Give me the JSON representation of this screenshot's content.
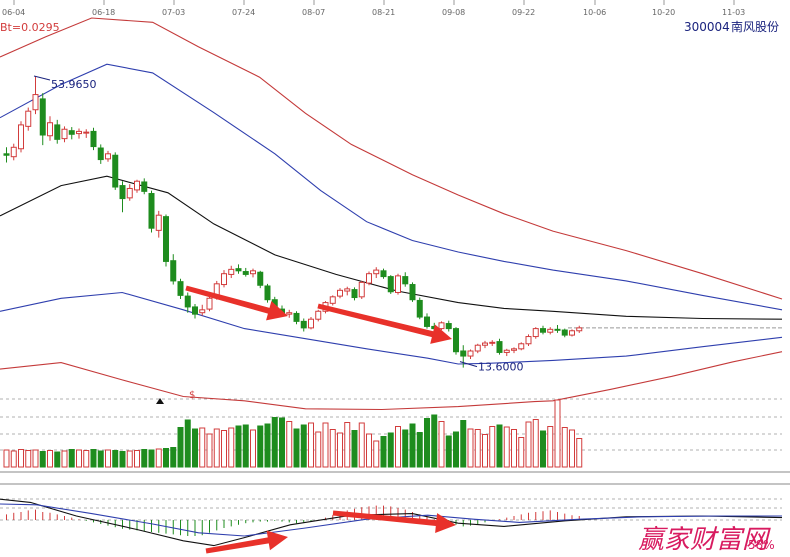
{
  "header": {
    "ticker": "300004",
    "name": "南风股份",
    "bt_label": "Bt=0.0295"
  },
  "colors": {
    "up": "#d23c3c",
    "down": "#1e8c1e",
    "boll_outer": "#c43a3a",
    "boll_inner": "#2f3fae",
    "boll_mid": "#111111",
    "axis_text": "#666666",
    "annotation": "#1a237e",
    "arrow": "#e8312a",
    "watermark": "#d81b60",
    "grid": "#b0b0b0"
  },
  "chart_data": {
    "type": "candlestick",
    "x_ticks": [
      "06-04",
      "06-18",
      "07-03",
      "07-24",
      "08-07",
      "08-21",
      "09-08",
      "09-22",
      "10-06",
      "10-20",
      "11-03"
    ],
    "price_range": [
      10.5,
      62
    ],
    "candles": [
      [
        43.2,
        44.1,
        42.0,
        43.0
      ],
      [
        42.8,
        44.6,
        42.3,
        44.1
      ],
      [
        43.9,
        47.7,
        43.4,
        47.2
      ],
      [
        47.0,
        49.6,
        46.4,
        49.1
      ],
      [
        49.3,
        53.96,
        48.7,
        51.4
      ],
      [
        50.8,
        51.6,
        44.4,
        45.8
      ],
      [
        45.7,
        48.4,
        45.0,
        47.5
      ],
      [
        47.2,
        47.9,
        44.6,
        45.2
      ],
      [
        45.3,
        47.0,
        44.8,
        46.6
      ],
      [
        46.4,
        46.9,
        45.2,
        45.9
      ],
      [
        46.0,
        46.7,
        45.3,
        46.3
      ],
      [
        46.1,
        46.6,
        45.4,
        46.2
      ],
      [
        46.3,
        46.8,
        43.7,
        44.2
      ],
      [
        44.0,
        44.5,
        41.8,
        42.4
      ],
      [
        42.5,
        43.6,
        42.1,
        43.2
      ],
      [
        43.0,
        43.4,
        38.2,
        38.6
      ],
      [
        38.8,
        39.4,
        35.1,
        37.0
      ],
      [
        37.1,
        39.0,
        36.7,
        38.4
      ],
      [
        38.2,
        39.6,
        37.8,
        39.4
      ],
      [
        39.3,
        39.8,
        37.6,
        38.0
      ],
      [
        37.7,
        38.1,
        32.3,
        32.9
      ],
      [
        32.6,
        35.3,
        31.6,
        34.7
      ],
      [
        34.5,
        34.8,
        27.6,
        28.3
      ],
      [
        28.4,
        29.3,
        25.1,
        25.6
      ],
      [
        25.5,
        25.9,
        23.1,
        23.6
      ],
      [
        23.5,
        24.0,
        21.2,
        22.0
      ],
      [
        22.0,
        22.4,
        20.4,
        21.0
      ],
      [
        21.2,
        22.3,
        20.8,
        21.6
      ],
      [
        21.7,
        23.6,
        21.4,
        23.2
      ],
      [
        23.3,
        25.6,
        23.0,
        25.2
      ],
      [
        25.1,
        27.1,
        24.7,
        26.6
      ],
      [
        26.5,
        27.7,
        26.0,
        27.2
      ],
      [
        27.3,
        27.9,
        26.6,
        27.0
      ],
      [
        26.9,
        27.4,
        26.2,
        26.5
      ],
      [
        26.6,
        27.3,
        26.1,
        27.0
      ],
      [
        26.8,
        27.0,
        24.6,
        25.0
      ],
      [
        24.9,
        25.2,
        22.6,
        23.0
      ],
      [
        23.0,
        23.4,
        21.4,
        21.8
      ],
      [
        21.7,
        22.2,
        20.6,
        21.0
      ],
      [
        21.0,
        21.6,
        20.5,
        21.2
      ],
      [
        21.1,
        21.4,
        19.6,
        20.0
      ],
      [
        20.0,
        20.4,
        18.6,
        19.1
      ],
      [
        19.1,
        20.6,
        18.9,
        20.3
      ],
      [
        20.3,
        21.6,
        20.0,
        21.4
      ],
      [
        21.4,
        22.8,
        21.1,
        22.6
      ],
      [
        22.5,
        23.6,
        22.2,
        23.4
      ],
      [
        23.5,
        24.6,
        23.2,
        24.3
      ],
      [
        24.2,
        24.8,
        23.6,
        24.5
      ],
      [
        24.4,
        24.7,
        22.9,
        23.3
      ],
      [
        23.4,
        25.6,
        23.1,
        25.4
      ],
      [
        25.3,
        26.9,
        25.0,
        26.6
      ],
      [
        26.6,
        27.5,
        26.0,
        27.1
      ],
      [
        27.0,
        27.3,
        25.9,
        26.2
      ],
      [
        26.2,
        26.4,
        23.8,
        24.1
      ],
      [
        24.0,
        26.6,
        23.7,
        26.3
      ],
      [
        26.2,
        26.8,
        24.8,
        25.2
      ],
      [
        25.1,
        25.4,
        22.7,
        23.0
      ],
      [
        22.9,
        23.3,
        20.3,
        20.6
      ],
      [
        20.6,
        21.1,
        19.0,
        19.3
      ],
      [
        19.3,
        19.8,
        18.7,
        19.0
      ],
      [
        19.0,
        20.0,
        18.8,
        19.8
      ],
      [
        19.7,
        20.1,
        18.6,
        19.0
      ],
      [
        19.0,
        19.2,
        15.4,
        15.8
      ],
      [
        15.9,
        16.7,
        13.6,
        15.2
      ],
      [
        15.2,
        16.1,
        14.8,
        15.9
      ],
      [
        15.9,
        16.9,
        15.6,
        16.7
      ],
      [
        16.7,
        17.3,
        16.3,
        17.0
      ],
      [
        17.0,
        17.4,
        16.6,
        17.1
      ],
      [
        17.2,
        17.6,
        15.4,
        15.7
      ],
      [
        15.7,
        16.2,
        15.2,
        16.0
      ],
      [
        16.0,
        16.4,
        15.6,
        16.2
      ],
      [
        16.2,
        17.1,
        16.0,
        16.9
      ],
      [
        16.9,
        18.2,
        16.6,
        17.9
      ],
      [
        17.9,
        19.2,
        17.6,
        19.0
      ],
      [
        19.0,
        19.4,
        18.2,
        18.5
      ],
      [
        18.5,
        19.2,
        18.2,
        18.9
      ],
      [
        18.9,
        19.5,
        18.4,
        18.8
      ],
      [
        18.8,
        19.0,
        17.8,
        18.1
      ],
      [
        18.1,
        18.9,
        17.9,
        18.7
      ],
      [
        18.7,
        19.4,
        18.4,
        19.1
      ]
    ],
    "bands": {
      "mid": [
        [
          0,
          34.6
        ],
        [
          20,
          38.8
        ],
        [
          35,
          40.1
        ],
        [
          55,
          37.8
        ],
        [
          70,
          33.5
        ],
        [
          90,
          29.2
        ],
        [
          110,
          26.5
        ],
        [
          130,
          24.2
        ],
        [
          150,
          22.6
        ],
        [
          165,
          21.8
        ],
        [
          181,
          21.4
        ],
        [
          205,
          20.7
        ],
        [
          230,
          20.4
        ],
        [
          256,
          20.3
        ]
      ],
      "inner_upper": [
        [
          0,
          48.2
        ],
        [
          20,
          52.8
        ],
        [
          35,
          55.6
        ],
        [
          50,
          54.4
        ],
        [
          70,
          48.9
        ],
        [
          90,
          43.2
        ],
        [
          105,
          38.1
        ],
        [
          120,
          33.8
        ],
        [
          135,
          31.2
        ],
        [
          150,
          29.6
        ],
        [
          165,
          28.3
        ],
        [
          181,
          27.1
        ],
        [
          205,
          25.6
        ],
        [
          230,
          23.6
        ],
        [
          256,
          21.6
        ]
      ],
      "inner_lower": [
        [
          0,
          21.4
        ],
        [
          20,
          23.2
        ],
        [
          40,
          24.0
        ],
        [
          60,
          21.6
        ],
        [
          80,
          19.0
        ],
        [
          100,
          17.6
        ],
        [
          120,
          16.2
        ],
        [
          140,
          14.9
        ],
        [
          150,
          14.1
        ],
        [
          160,
          14.2
        ],
        [
          181,
          14.6
        ],
        [
          205,
          15.2
        ],
        [
          230,
          16.5
        ],
        [
          256,
          17.8
        ]
      ],
      "outer_upper": [
        [
          0,
          56.6
        ],
        [
          15,
          59.4
        ],
        [
          30,
          62.0
        ],
        [
          50,
          61.4
        ],
        [
          65,
          58.0
        ],
        [
          85,
          53.8
        ],
        [
          100,
          48.8
        ],
        [
          115,
          44.5
        ],
        [
          135,
          40.3
        ],
        [
          150,
          37.5
        ],
        [
          165,
          34.9
        ],
        [
          181,
          32.5
        ],
        [
          205,
          29.8
        ],
        [
          230,
          26.6
        ],
        [
          256,
          23.1
        ]
      ],
      "outer_lower": [
        [
          0,
          13.4
        ],
        [
          20,
          14.3
        ],
        [
          40,
          11.9
        ],
        [
          60,
          9.6
        ],
        [
          80,
          9.0
        ],
        [
          100,
          7.9
        ],
        [
          125,
          7.8
        ],
        [
          150,
          8.2
        ],
        [
          175,
          8.9
        ],
        [
          181,
          9.0
        ],
        [
          200,
          10.6
        ],
        [
          220,
          12.4
        ],
        [
          240,
          14.4
        ],
        [
          256,
          15.8
        ]
      ]
    },
    "volume": [
      3.4,
      3.2,
      3.5,
      3.3,
      3.4,
      3.1,
      3.3,
      3.0,
      3.2,
      3.5,
      3.4,
      3.3,
      3.5,
      3.2,
      3.4,
      3.3,
      3.1,
      3.2,
      3.3,
      3.5,
      3.4,
      3.6,
      3.7,
      3.9,
      7.9,
      9.4,
      7.6,
      7.8,
      6.6,
      7.6,
      7.3,
      7.8,
      8.2,
      8.4,
      7.4,
      8.2,
      8.6,
      9.9,
      9.8,
      9.1,
      7.6,
      8.4,
      8.8,
      7.0,
      8.8,
      7.5,
      6.8,
      8.9,
      7.3,
      8.8,
      6.6,
      5.2,
      6.1,
      6.8,
      8.1,
      7.4,
      8.6,
      6.9,
      9.7,
      10.4,
      9.1,
      6.2,
      7.0,
      9.3,
      7.6,
      7.5,
      6.5,
      8.1,
      8.4,
      8.0,
      7.5,
      5.9,
      9.0,
      9.5,
      7.2,
      8.1,
      13.4,
      7.9,
      7.4,
      5.7
    ],
    "volume_max": 14,
    "volume_up": [
      true,
      true,
      true,
      true,
      true,
      false,
      true,
      false,
      true,
      false,
      true,
      true,
      false,
      false,
      true,
      false,
      false,
      true,
      true,
      false,
      false,
      true,
      false,
      false,
      false,
      false,
      false,
      true,
      true,
      true,
      true,
      true,
      false,
      false,
      true,
      false,
      false,
      false,
      false,
      true,
      false,
      false,
      true,
      true,
      true,
      true,
      true,
      true,
      false,
      true,
      true,
      true,
      false,
      false,
      true,
      false,
      false,
      false,
      false,
      false,
      true,
      false,
      false,
      false,
      true,
      true,
      true,
      true,
      false,
      true,
      true,
      true,
      true,
      true,
      false,
      true,
      true,
      true,
      true,
      true
    ],
    "macd_hist": [
      0.7,
      0.9,
      1.0,
      1.2,
      1.3,
      1.0,
      0.9,
      0.7,
      0.5,
      0.3,
      0.1,
      -0.1,
      -0.3,
      -0.5,
      -0.7,
      -0.9,
      -1.1,
      -1.2,
      -1.3,
      -1.4,
      -1.5,
      -1.6,
      -1.7,
      -1.8,
      -1.9,
      -2.0,
      -2.0,
      -1.9,
      -1.6,
      -1.3,
      -1.0,
      -0.8,
      -0.6,
      -0.4,
      -0.3,
      -0.2,
      -0.2,
      -0.1,
      -0.2,
      -0.3,
      -0.4,
      -0.3,
      -0.2,
      0.0,
      0.3,
      0.6,
      0.9,
      1.2,
      1.4,
      1.6,
      1.7,
      1.8,
      1.8,
      1.7,
      1.5,
      1.3,
      1.0,
      0.7,
      0.4,
      0.1,
      -0.2,
      -0.4,
      -0.6,
      -0.8,
      -0.7,
      -0.5,
      -0.3,
      -0.1,
      0.1,
      0.3,
      0.5,
      0.7,
      0.9,
      1.0,
      1.1,
      1.2,
      1.0,
      0.8,
      0.6,
      0.5
    ],
    "macd_dif": [
      [
        0,
        2.6
      ],
      [
        10,
        2.2
      ],
      [
        25,
        0.5
      ],
      [
        45,
        -1.2
      ],
      [
        60,
        -2.6
      ],
      [
        70,
        -3.2
      ],
      [
        80,
        -2.2
      ],
      [
        95,
        -0.6
      ],
      [
        115,
        0.6
      ],
      [
        135,
        0.8
      ],
      [
        150,
        -0.4
      ],
      [
        165,
        -0.8
      ],
      [
        185,
        -0.1
      ],
      [
        205,
        0.4
      ],
      [
        230,
        0.5
      ],
      [
        256,
        0.3
      ]
    ],
    "macd_dea": [
      [
        0,
        2.0
      ],
      [
        12,
        1.9
      ],
      [
        30,
        0.8
      ],
      [
        50,
        -0.5
      ],
      [
        65,
        -1.6
      ],
      [
        80,
        -2.0
      ],
      [
        100,
        -1.0
      ],
      [
        120,
        0.1
      ],
      [
        140,
        0.6
      ],
      [
        155,
        0.1
      ],
      [
        170,
        -0.3
      ],
      [
        190,
        0.1
      ],
      [
        210,
        0.4
      ],
      [
        235,
        0.5
      ],
      [
        256,
        0.5
      ]
    ],
    "macd_range": [
      -3.5,
      3.5
    ],
    "annotations": [
      {
        "label": "53.9650",
        "value": 53.965
      },
      {
        "label": "13.6000",
        "value": 13.6
      }
    ]
  },
  "markers": {
    "dollar": "$"
  },
  "watermark": {
    "text": "赢家财富网",
    "percent": "58%"
  }
}
